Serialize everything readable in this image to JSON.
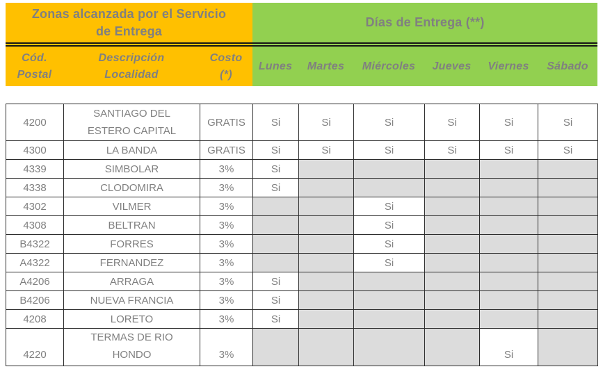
{
  "colors": {
    "yellow": "#FFC000",
    "green": "#92D050",
    "shaded_cell": "#DCDCDC",
    "grid_line": "#2b2b2b",
    "text_gray": "#808080"
  },
  "header": {
    "zones_title": "Zonas alcanzada por el Servicio\nde Entrega",
    "days_title": "Días de Entrega (**)",
    "zone_columns": [
      "Cód.\nPostal",
      "Descripción\nLocalidad",
      "Costo\n(*)"
    ],
    "day_columns": [
      "Lunes",
      "Martes",
      "Miércoles",
      "Jueves",
      "Viernes",
      "Sábado"
    ]
  },
  "table": {
    "yes_label": "Si",
    "rows": [
      {
        "cod_postal": "4200",
        "localidad": "SANTIAGO DEL\nESTERO CAPITAL",
        "costo": "GRATIS",
        "days": [
          "Si",
          "Si",
          "Si",
          "Si",
          "Si",
          "Si"
        ],
        "tall": true
      },
      {
        "cod_postal": "4300",
        "localidad": "LA BANDA",
        "costo": "GRATIS",
        "days": [
          "Si",
          "Si",
          "Si",
          "Si",
          "Si",
          "Si"
        ]
      },
      {
        "cod_postal": "4339",
        "localidad": "SIMBOLAR",
        "costo": "3%",
        "days": [
          "Si",
          "",
          "",
          "",
          "",
          ""
        ]
      },
      {
        "cod_postal": "4338",
        "localidad": "CLODOMIRA",
        "costo": "3%",
        "days": [
          "Si",
          "",
          "",
          "",
          "",
          ""
        ]
      },
      {
        "cod_postal": "4302",
        "localidad": "VILMER",
        "costo": "3%",
        "days": [
          "",
          "",
          "Si",
          "",
          "",
          ""
        ]
      },
      {
        "cod_postal": "4308",
        "localidad": "BELTRAN",
        "costo": "3%",
        "days": [
          "",
          "",
          "Si",
          "",
          "",
          ""
        ]
      },
      {
        "cod_postal": "B4322",
        "localidad": "FORRES",
        "costo": "3%",
        "days": [
          "",
          "",
          "Si",
          "",
          "",
          ""
        ]
      },
      {
        "cod_postal": "A4322",
        "localidad": "FERNANDEZ",
        "costo": "3%",
        "days": [
          "",
          "",
          "Si",
          "",
          "",
          ""
        ]
      },
      {
        "cod_postal": "A4206",
        "localidad": "ARRAGA",
        "costo": "3%",
        "days": [
          "Si",
          "",
          "",
          "",
          "",
          ""
        ]
      },
      {
        "cod_postal": "B4206",
        "localidad": "NUEVA FRANCIA",
        "costo": "3%",
        "days": [
          "Si",
          "",
          "",
          "",
          "",
          ""
        ]
      },
      {
        "cod_postal": "4208",
        "localidad": "LORETO",
        "costo": "3%",
        "days": [
          "Si",
          "",
          "",
          "",
          "",
          ""
        ]
      },
      {
        "cod_postal": "4220",
        "localidad": "TERMAS DE RIO\nHONDO",
        "costo": "3%",
        "days": [
          "",
          "",
          "",
          "",
          "Si",
          ""
        ],
        "tall": true,
        "valign": "bottom"
      }
    ]
  }
}
